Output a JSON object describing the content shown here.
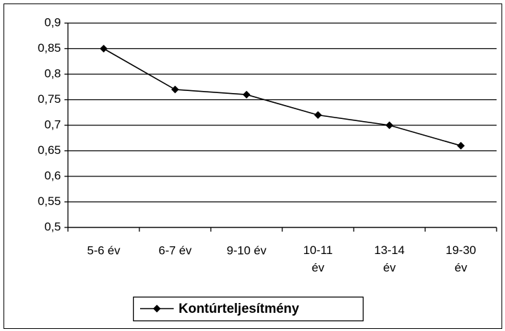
{
  "chart_data": {
    "type": "line",
    "categories": [
      "5-6 év",
      "6-7 év",
      "9-10 év",
      "10-11 év",
      "13-14 év",
      "19-30 év"
    ],
    "series": [
      {
        "name": "Kontúrteljesítmény",
        "color": "#000000",
        "values": [
          0.85,
          0.77,
          0.76,
          0.72,
          0.7,
          0.66
        ]
      }
    ],
    "ylim": [
      0.5,
      0.9
    ],
    "yticks": [
      {
        "value": 0.5,
        "label": "0,5"
      },
      {
        "value": 0.55,
        "label": "0,55"
      },
      {
        "value": 0.6,
        "label": "0,6"
      },
      {
        "value": 0.65,
        "label": "0,65"
      },
      {
        "value": 0.7,
        "label": "0,7"
      },
      {
        "value": 0.75,
        "label": "0,75"
      },
      {
        "value": 0.8,
        "label": "0,8"
      },
      {
        "value": 0.85,
        "label": "0,85"
      },
      {
        "value": 0.9,
        "label": "0,9"
      }
    ],
    "grid": true,
    "legend": "bottom"
  }
}
